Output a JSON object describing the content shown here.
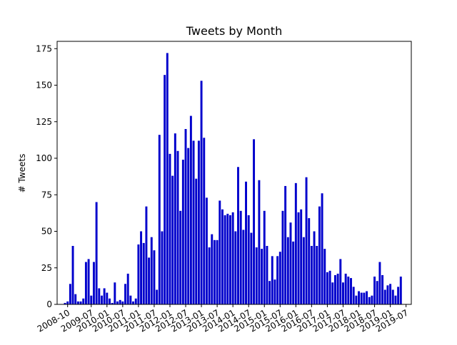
{
  "chart_data": {
    "type": "bar",
    "title": "Tweets by Month",
    "xlabel": "",
    "ylabel": "# Tweets",
    "ylim": [
      0,
      180
    ],
    "y_ticks": [
      0,
      25,
      50,
      75,
      100,
      125,
      150,
      175
    ],
    "x_range": [
      "2008-06",
      "2019-09"
    ],
    "x_ticks": [
      "2008-10",
      "2009-07",
      "2010-01",
      "2010-07",
      "2011-01",
      "2011-07",
      "2012-01",
      "2012-07",
      "2013-01",
      "2013-07",
      "2014-01",
      "2014-07",
      "2015-01",
      "2015-07",
      "2016-01",
      "2016-07",
      "2017-01",
      "2017-07",
      "2018-01",
      "2018-07",
      "2019-01",
      "2019-07"
    ],
    "bar_color": "#0000cc",
    "grid": false,
    "legend": "none",
    "start_month": "2008-09",
    "values": [
      1,
      2,
      14,
      40,
      7,
      2,
      2,
      4,
      29,
      31,
      6,
      29,
      70,
      11,
      6,
      11,
      8,
      4,
      1,
      15,
      2,
      3,
      2,
      14,
      21,
      6,
      2,
      4,
      41,
      50,
      42,
      67,
      32,
      46,
      37,
      10,
      116,
      50,
      157,
      172,
      103,
      88,
      117,
      105,
      64,
      99,
      120,
      107,
      129,
      112,
      86,
      112,
      153,
      114,
      73,
      39,
      48,
      44,
      44,
      71,
      65,
      61,
      62,
      61,
      63,
      50,
      94,
      64,
      51,
      84,
      61,
      49,
      113,
      39,
      85,
      38,
      64,
      40,
      16,
      33,
      17,
      33,
      36,
      64,
      81,
      46,
      56,
      43,
      83,
      63,
      65,
      46,
      87,
      59,
      40,
      50,
      40,
      67,
      76,
      38,
      22,
      23,
      15,
      20,
      21,
      31,
      15,
      21,
      19,
      18,
      12,
      6,
      9,
      8,
      8,
      9,
      5,
      6,
      19,
      16,
      29,
      20,
      10,
      13,
      14,
      10,
      6,
      12,
      19
    ]
  }
}
